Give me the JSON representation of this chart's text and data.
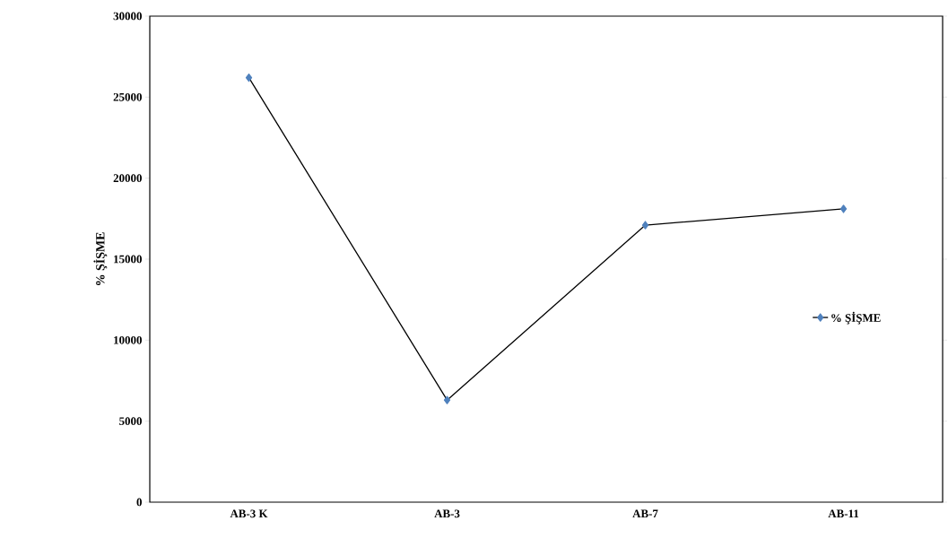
{
  "chart_data": {
    "type": "line",
    "ylabel": "% ŞİŞME",
    "categories": [
      "AB-3 K",
      "AB-3",
      "AB-7",
      "AB-11"
    ],
    "series": [
      {
        "name": "% ŞİŞME",
        "color": "#4f81bd",
        "values": [
          26200,
          6300,
          17100,
          18100
        ]
      }
    ],
    "ylim": [
      0,
      30000
    ],
    "yticks": [
      0,
      5000,
      10000,
      15000,
      20000,
      25000,
      30000
    ],
    "legend": "right",
    "marker": "diamond",
    "line_style": "solid",
    "grid": false
  }
}
